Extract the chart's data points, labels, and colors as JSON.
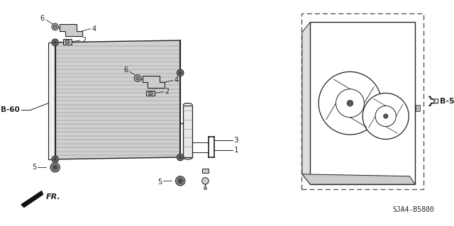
{
  "bg_color": "#ffffff",
  "line_color": "#222222",
  "part_code": "SJA4-B5800",
  "labels": {
    "B60": "B-60",
    "B5": "B-5",
    "FR": "FR.",
    "num1": "1",
    "num2a": "2",
    "num2b": "2",
    "num3": "3",
    "num4a": "4",
    "num4b": "4",
    "num5a": "5",
    "num5b": "5",
    "num6a": "6",
    "num6b": "6"
  }
}
